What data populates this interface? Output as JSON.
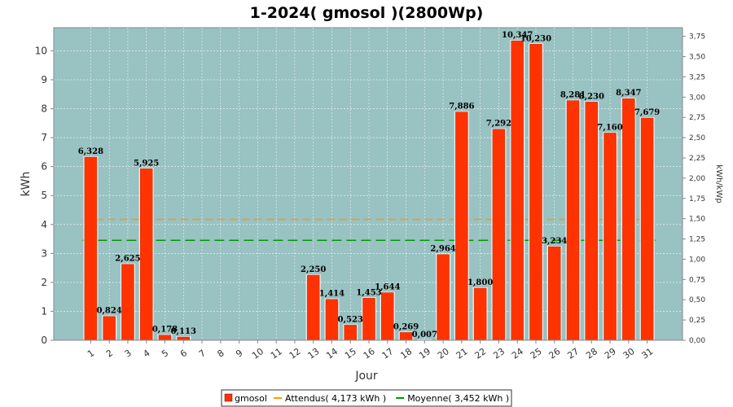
{
  "chart_data": {
    "type": "bar",
    "title": "1-2024( gmosol )(2800Wp)",
    "xlabel": "Jour",
    "ylabel": "kWh",
    "y2label": "kWh/kWp",
    "ylim": [
      0,
      10.8
    ],
    "yticks": [
      0,
      1,
      2,
      3,
      4,
      5,
      6,
      7,
      8,
      9,
      10
    ],
    "y2ticks": [
      "0,00",
      "0,25",
      "0,50",
      "0,75",
      "1,00",
      "1,25",
      "1,50",
      "1,75",
      "2,00",
      "2,25",
      "2,50",
      "2,75",
      "3,00",
      "3,25",
      "3,50",
      "3,75"
    ],
    "y2_per_unit": 2.8,
    "categories": [
      "1",
      "2",
      "3",
      "4",
      "5",
      "6",
      "7",
      "8",
      "9",
      "10",
      "11",
      "12",
      "13",
      "14",
      "15",
      "16",
      "17",
      "18",
      "19",
      "20",
      "21",
      "22",
      "23",
      "24",
      "25",
      "26",
      "27",
      "28",
      "29",
      "30",
      "31"
    ],
    "series": [
      {
        "name": "gmosol",
        "color": "#ff3300",
        "values": [
          6.328,
          0.824,
          2.625,
          5.925,
          0.178,
          0.113,
          0,
          0,
          0,
          0,
          0,
          0,
          2.25,
          1.414,
          0.523,
          1.453,
          1.644,
          0.269,
          0.007,
          2.964,
          7.886,
          1.8,
          7.292,
          10.347,
          10.23,
          3.234,
          8.281,
          8.23,
          7.16,
          8.347,
          7.679
        ],
        "labels": [
          "6,328",
          "0,824",
          "2,625",
          "5,925",
          "0,178",
          "0,113",
          "",
          "",
          "",
          "",
          "",
          "",
          "2,250",
          "1,414",
          "0,523",
          "1,453",
          "1,644",
          "0,269",
          "0,007",
          "2,964",
          "7,886",
          "1,800",
          "7,292",
          "10,347",
          "10,230",
          "3,234",
          "8,281",
          "8,230",
          "7,160",
          "8,347",
          "7,679"
        ]
      }
    ],
    "reference_lines": [
      {
        "name": "Attendus",
        "value": 4.173,
        "color": "#ff9900",
        "legend": "Attendus( 4,173 kWh )"
      },
      {
        "name": "Moyenne",
        "value": 3.452,
        "color": "#009900",
        "legend": "Moyenne( 3,452 kWh )"
      }
    ],
    "legend_position": "bottom",
    "grid": true,
    "colors": {
      "plot_bg": "#99c2c2",
      "grid": "#ffffff"
    }
  }
}
